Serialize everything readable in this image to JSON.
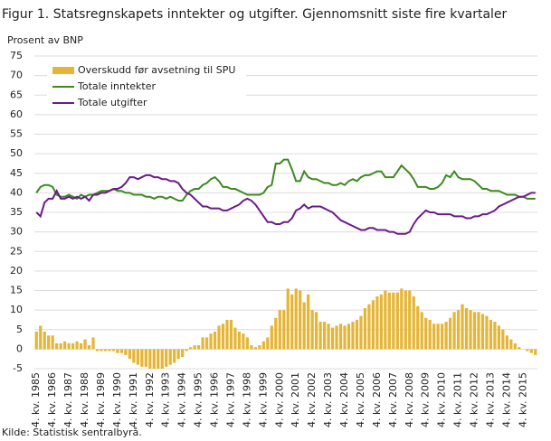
{
  "chart_data": {
    "type": "combo",
    "title": "Figur 1. Statsregnskapets inntekter og utgifter. Gjennomsnitt siste fire kvartaler",
    "y_label": "Prosent  av BNP",
    "source": "Kilde: Statistisk sentralbyrå.",
    "categories": [
      "4. kv. 1985",
      null,
      null,
      null,
      "4. kv. 1986",
      null,
      null,
      null,
      "4. kv. 1987",
      null,
      null,
      null,
      "4. kv. 1988",
      null,
      null,
      null,
      "4. kv. 1989",
      null,
      null,
      null,
      "4. kv. 1990",
      null,
      null,
      null,
      "4. kv. 1991",
      null,
      null,
      null,
      "4. kv. 1992",
      null,
      null,
      null,
      "4. kv. 1993",
      null,
      null,
      null,
      "4. kv. 1994",
      null,
      null,
      null,
      "4. kv. 1995",
      null,
      null,
      null,
      "4. kv. 1996",
      null,
      null,
      null,
      "4. kv. 1997",
      null,
      null,
      null,
      "4. kv. 1998",
      null,
      null,
      null,
      "4. kv. 1999",
      null,
      null,
      null,
      "4. kv. 2000",
      null,
      null,
      null,
      "4. kv. 2001",
      null,
      null,
      null,
      "4. kv. 2002",
      null,
      null,
      null,
      "4. kv. 2003",
      null,
      null,
      null,
      "4. kv. 2004",
      null,
      null,
      null,
      "4. kv. 2005",
      null,
      null,
      null,
      "4. kv. 2006",
      null,
      null,
      null,
      "4. kv. 2007",
      null,
      null,
      null,
      "4. kv. 2008",
      null,
      null,
      null,
      "4. kv. 2009",
      null,
      null,
      null,
      "4. kv. 2010",
      null,
      null,
      null,
      "4. kv. 2011",
      null,
      null,
      null,
      "4. kv. 2012",
      null,
      null,
      null,
      "4. kv. 2013",
      null,
      null,
      null,
      "4. kv. 2014",
      null,
      null,
      null,
      "4. kv. 2015",
      null,
      null,
      null
    ],
    "series": [
      {
        "name": "Overskudd før avsetning til SPU",
        "type": "bar",
        "color": "#e5b536",
        "values": [
          4.5,
          6,
          4.5,
          3.5,
          3.5,
          1.5,
          1.5,
          2,
          1.5,
          1.5,
          2,
          1.5,
          2.5,
          1,
          3,
          -0.5,
          -0.5,
          -0.5,
          -0.5,
          -0.5,
          -1,
          -1,
          -1.5,
          -2.5,
          -3.5,
          -4,
          -4.5,
          -4.5,
          -5,
          -5,
          -5,
          -5,
          -4.5,
          -4,
          -3.5,
          -2.5,
          -2,
          -0.5,
          0.5,
          1,
          1,
          3,
          3,
          4,
          4.5,
          6,
          6.5,
          7.5,
          7.5,
          5.5,
          4.5,
          4,
          3,
          1,
          0.5,
          1,
          2,
          3,
          6,
          8,
          10,
          10,
          15.5,
          14,
          15.5,
          15,
          12,
          14,
          10,
          9.5,
          7,
          7,
          6.5,
          5.5,
          6,
          6.5,
          6,
          6.5,
          7,
          7.5,
          8.5,
          10.5,
          11.5,
          12.5,
          13.5,
          14,
          15,
          14.5,
          14.5,
          14.5,
          15.5,
          15,
          15,
          13.5,
          11,
          9.5,
          8,
          7.5,
          6.5,
          6.5,
          6.5,
          7,
          8,
          9.5,
          10,
          11.5,
          10.5,
          10,
          9.5,
          9.5,
          9,
          8.5,
          7.5,
          7,
          6,
          5,
          3.5,
          2.5,
          1.5,
          0.5,
          0,
          -0.5,
          -1,
          -1.5
        ]
      },
      {
        "name": "Totale inntekter",
        "type": "line",
        "color": "#3b8a1f",
        "values": [
          40,
          41.5,
          42,
          42,
          41.5,
          39.5,
          39,
          39,
          39.5,
          39,
          38.5,
          39.5,
          39,
          39.5,
          39.5,
          40,
          40.5,
          40.5,
          40.5,
          41,
          40.5,
          40.5,
          40,
          40,
          39.5,
          39.5,
          39.5,
          39,
          39,
          38.5,
          39,
          39,
          38.5,
          39,
          38.5,
          38,
          38,
          39.5,
          40.5,
          41,
          41,
          42,
          42.5,
          43.5,
          44,
          43,
          41.5,
          41.5,
          41,
          41,
          40.5,
          40,
          39.5,
          39.5,
          39.5,
          39.5,
          40,
          41.5,
          42,
          47.5,
          47.5,
          48.5,
          48.5,
          46,
          43,
          43,
          45.5,
          44,
          43.5,
          43.5,
          43,
          42.5,
          42.5,
          42,
          42,
          42.5,
          42,
          43,
          43.5,
          43,
          44,
          44.5,
          44.5,
          45,
          45.5,
          45.5,
          44,
          44,
          44,
          45.5,
          47,
          46,
          45,
          43.5,
          41.5,
          41.5,
          41.5,
          41,
          41,
          41.5,
          42.5,
          44.5,
          44,
          45.5,
          44,
          43.5,
          43.5,
          43.5,
          43,
          42,
          41,
          41,
          40.5,
          40.5,
          40.5,
          40,
          39.5,
          39.5,
          39.5,
          39,
          39,
          38.5,
          38.5,
          38.5
        ]
      },
      {
        "name": "Totale utgifter",
        "type": "line",
        "color": "#6a1b8a",
        "values": [
          35,
          34,
          37.5,
          38.5,
          38.5,
          40.5,
          38.5,
          38.5,
          39,
          38.5,
          39,
          38.5,
          39,
          38,
          39.5,
          39.5,
          40,
          40,
          40.5,
          41,
          41,
          41.5,
          42.5,
          44,
          44,
          43.5,
          44,
          44.5,
          44.5,
          44,
          44,
          43.5,
          43.5,
          43,
          43,
          42.5,
          41,
          40,
          39.5,
          38.5,
          37.5,
          36.5,
          36.5,
          36,
          36,
          36,
          35.5,
          35.5,
          36,
          36.5,
          37,
          38,
          38.5,
          38,
          37,
          35.5,
          34,
          32.5,
          32.5,
          32,
          32,
          32.5,
          32.5,
          33.5,
          35.5,
          36,
          37,
          36,
          36.5,
          36.5,
          36.5,
          36,
          35.5,
          35,
          34,
          33,
          32.5,
          32,
          31.5,
          31,
          30.5,
          30.5,
          31,
          31,
          30.5,
          30.5,
          30.5,
          30,
          30,
          29.5,
          29.5,
          29.5,
          30,
          32,
          33.5,
          34.5,
          35.5,
          35,
          35,
          34.5,
          34.5,
          34.5,
          34.5,
          34,
          34,
          34,
          33.5,
          33.5,
          34,
          34,
          34.5,
          34.5,
          35,
          35.5,
          36.5,
          37,
          37.5,
          38,
          38.5,
          39,
          39,
          39.5,
          40,
          40
        ]
      }
    ],
    "ylim": [
      -5,
      75
    ],
    "yticks": [
      -5,
      0,
      5,
      10,
      15,
      20,
      25,
      30,
      35,
      40,
      45,
      50,
      55,
      60,
      65,
      70,
      75
    ],
    "grid": true,
    "legend": "top-left"
  }
}
